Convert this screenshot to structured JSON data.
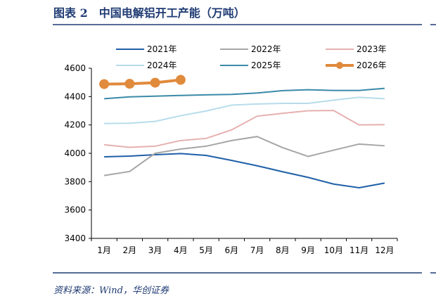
{
  "chart_data": {
    "type": "line",
    "title": "图表 2　中国电解铝开工产能（万吨）",
    "source": "资料来源：Wind，华创证券",
    "categories": [
      "1月",
      "2月",
      "3月",
      "4月",
      "5月",
      "6月",
      "7月",
      "8月",
      "9月",
      "10月",
      "11月",
      "12月"
    ],
    "series": [
      {
        "name": "2021年",
        "color": "#1f5fa8",
        "values": [
          3975,
          3980,
          3990,
          3998,
          3985,
          3950,
          3912,
          3870,
          3830,
          3783,
          3757,
          3790
        ]
      },
      {
        "name": "2022年",
        "color": "#a6a6a6",
        "values": [
          3843,
          3872,
          4000,
          4030,
          4050,
          4090,
          4118,
          4040,
          3978,
          4022,
          4065,
          4053
        ]
      },
      {
        "name": "2023年",
        "color": "#e6b0b0",
        "values": [
          4060,
          4042,
          4050,
          4090,
          4105,
          4165,
          4262,
          4282,
          4300,
          4302,
          4200,
          4202
        ]
      },
      {
        "name": "2024年",
        "color": "#b7dceb",
        "values": [
          4210,
          4212,
          4225,
          4265,
          4298,
          4340,
          4348,
          4352,
          4352,
          4375,
          4395,
          4385
        ]
      },
      {
        "name": "2025年",
        "color": "#3a8aa8",
        "values": [
          4385,
          4398,
          4403,
          4408,
          4412,
          4415,
          4425,
          4442,
          4448,
          4443,
          4443,
          4458
        ]
      },
      {
        "name": "2026年",
        "color": "#e08a3c",
        "values": [
          4488,
          4490,
          4498,
          4518,
          null,
          null,
          null,
          null,
          null,
          null,
          null,
          null
        ],
        "marker": true
      }
    ],
    "ylim": [
      3400,
      4600
    ],
    "yticks": [
      3400,
      3600,
      3800,
      4000,
      4200,
      4400,
      4600
    ],
    "legend": "top"
  }
}
